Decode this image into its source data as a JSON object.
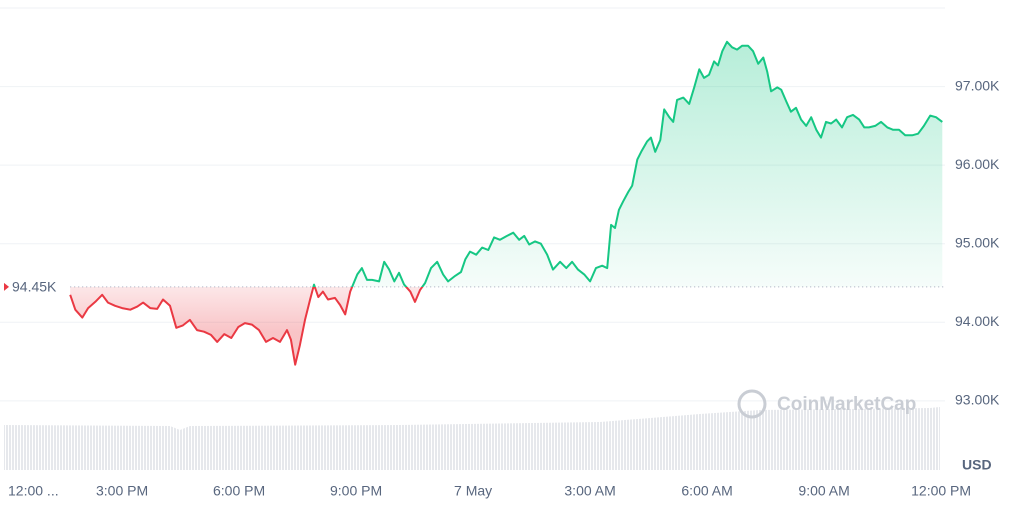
{
  "chart_data": {
    "type": "line",
    "x": [
      1.67,
      1.8,
      1.98,
      2.13,
      2.31,
      2.49,
      2.64,
      2.82,
      3.0,
      3.21,
      3.39,
      3.54,
      3.72,
      3.9,
      4.05,
      4.23,
      4.39,
      4.56,
      4.74,
      4.92,
      5.1,
      5.28,
      5.44,
      5.62,
      5.8,
      5.98,
      6.15,
      6.33,
      6.51,
      6.69,
      6.87,
      7.05,
      7.23,
      7.33,
      7.44,
      7.56,
      7.69,
      7.82,
      7.92,
      8.03,
      8.15,
      8.28,
      8.46,
      8.59,
      8.72,
      8.85,
      9.03,
      9.15,
      9.28,
      9.41,
      9.59,
      9.72,
      9.85,
      9.98,
      10.1,
      10.23,
      10.39,
      10.51,
      10.64,
      10.77,
      10.92,
      11.08,
      11.23,
      11.36,
      11.54,
      11.69,
      11.8,
      11.92,
      12.08,
      12.23,
      12.39,
      12.54,
      12.69,
      12.87,
      13.03,
      13.18,
      13.31,
      13.44,
      13.59,
      13.74,
      13.9,
      14.05,
      14.23,
      14.39,
      14.54,
      14.69,
      14.85,
      15.0,
      15.15,
      15.31,
      15.44,
      15.54,
      15.64,
      15.74,
      15.85,
      15.98,
      16.08,
      16.21,
      16.31,
      16.46,
      16.56,
      16.67,
      16.8,
      16.9,
      17.03,
      17.13,
      17.23,
      17.39,
      17.54,
      17.67,
      17.8,
      17.92,
      18.05,
      18.18,
      18.28,
      18.39,
      18.51,
      18.64,
      18.77,
      18.9,
      19.05,
      19.18,
      19.31,
      19.44,
      19.54,
      19.64,
      19.8,
      19.9,
      20.03,
      20.15,
      20.28,
      20.41,
      20.54,
      20.67,
      20.8,
      20.92,
      21.05,
      21.18,
      21.31,
      21.46,
      21.59,
      21.74,
      21.9,
      22.03,
      22.15,
      22.31,
      22.46,
      22.62,
      22.77,
      22.92,
      23.08,
      23.26,
      23.41,
      23.56,
      23.72,
      23.87,
      24.03
    ],
    "values": [
      94.35,
      94.16,
      94.06,
      94.18,
      94.26,
      94.35,
      94.25,
      94.21,
      94.18,
      94.16,
      94.2,
      94.25,
      94.18,
      94.17,
      94.29,
      94.21,
      93.93,
      93.96,
      94.03,
      93.9,
      93.88,
      93.84,
      93.75,
      93.85,
      93.8,
      93.94,
      93.99,
      93.97,
      93.9,
      93.75,
      93.8,
      93.75,
      93.9,
      93.78,
      93.46,
      93.71,
      94.03,
      94.29,
      94.48,
      94.32,
      94.39,
      94.29,
      94.31,
      94.22,
      94.1,
      94.39,
      94.61,
      94.69,
      94.54,
      94.54,
      94.52,
      94.77,
      94.67,
      94.52,
      94.63,
      94.48,
      94.39,
      94.26,
      94.41,
      94.5,
      94.69,
      94.77,
      94.61,
      94.52,
      94.59,
      94.64,
      94.8,
      94.9,
      94.86,
      94.95,
      94.92,
      95.08,
      95.05,
      95.1,
      95.14,
      95.05,
      95.1,
      94.99,
      95.03,
      95.0,
      94.86,
      94.67,
      94.77,
      94.69,
      94.77,
      94.67,
      94.61,
      94.52,
      94.69,
      94.72,
      94.69,
      95.24,
      95.2,
      95.43,
      95.54,
      95.66,
      95.74,
      96.07,
      96.17,
      96.3,
      96.35,
      96.17,
      96.32,
      96.71,
      96.61,
      96.55,
      96.83,
      96.86,
      96.78,
      96.99,
      97.22,
      97.11,
      97.15,
      97.32,
      97.27,
      97.45,
      97.57,
      97.5,
      97.47,
      97.52,
      97.52,
      97.45,
      97.29,
      97.37,
      97.19,
      96.94,
      96.99,
      96.96,
      96.81,
      96.68,
      96.73,
      96.58,
      96.5,
      96.61,
      96.45,
      96.35,
      96.55,
      96.53,
      96.58,
      96.48,
      96.61,
      96.64,
      96.58,
      96.48,
      96.48,
      96.5,
      96.55,
      96.48,
      96.45,
      96.45,
      96.38,
      96.38,
      96.4,
      96.5,
      96.63,
      96.61,
      96.55
    ],
    "color_above": "#16c784",
    "color_below": "#ea3943",
    "baseline": {
      "value": 94.45,
      "label": "94.45K"
    },
    "xlim": [
      -0.13,
      24.1
    ],
    "xticks": [
      {
        "value": 0,
        "label": "12:00 ..."
      },
      {
        "value": 3,
        "label": "3:00 PM"
      },
      {
        "value": 6,
        "label": "6:00 PM"
      },
      {
        "value": 9,
        "label": "9:00 PM"
      },
      {
        "value": 12,
        "label": "7 May"
      },
      {
        "value": 15,
        "label": "3:00 AM"
      },
      {
        "value": 18,
        "label": "6:00 AM"
      },
      {
        "value": 21,
        "label": "9:00 AM"
      },
      {
        "value": 24,
        "label": "12:00 PM"
      }
    ],
    "ylim": [
      92.12,
      98.0
    ],
    "yticks": [
      {
        "value": 93,
        "label": "93.00K"
      },
      {
        "value": 94,
        "label": "94.00K"
      },
      {
        "value": 95,
        "label": "95.00K"
      },
      {
        "value": 96,
        "label": "96.00K"
      },
      {
        "value": 97,
        "label": "97.00K"
      }
    ],
    "grid": true,
    "currency": "USD",
    "watermark": "CoinMarketCap"
  }
}
